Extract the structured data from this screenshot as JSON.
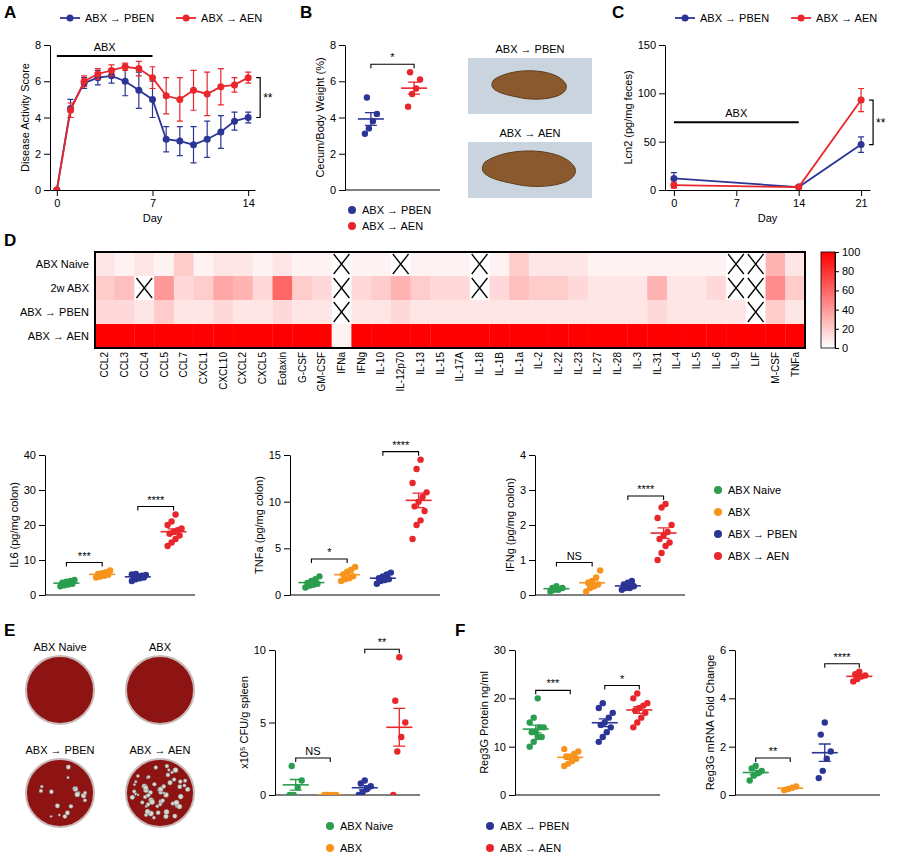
{
  "chart_data": [
    {
      "type": "line",
      "panel_label": "A",
      "x": [
        0,
        1,
        2,
        3,
        4,
        5,
        6,
        7,
        8,
        9,
        10,
        11,
        12,
        13,
        14
      ],
      "xlim": [
        -0.5,
        14.5
      ],
      "xticks": [
        0,
        7,
        14
      ],
      "xlabel": "Day",
      "ylabel": "Disease Activity Score",
      "ylim": [
        0,
        8
      ],
      "yticks": [
        0,
        2,
        4,
        6,
        8
      ],
      "legend": "top",
      "series": [
        {
          "name": "ABX → PBEN",
          "color": "#2b3595",
          "marker": "circle",
          "values": [
            0,
            4.5,
            5.9,
            6.2,
            6.3,
            6.0,
            5.5,
            5.0,
            2.8,
            2.7,
            2.5,
            2.8,
            3.2,
            3.8,
            4.0
          ],
          "errors": [
            0,
            0.5,
            0.3,
            0.4,
            0.4,
            0.8,
            1.0,
            1.0,
            0.7,
            0.8,
            1.0,
            1.0,
            0.9,
            0.5,
            0.3
          ]
        },
        {
          "name": "ABX → AEN",
          "color": "#e8262b",
          "marker": "circle",
          "values": [
            0,
            4.4,
            6.0,
            6.4,
            6.6,
            6.8,
            6.7,
            6.2,
            5.2,
            5.0,
            5.5,
            5.3,
            5.7,
            5.8,
            6.2
          ],
          "errors": [
            0,
            0.4,
            0.3,
            0.3,
            0.3,
            0.2,
            0.4,
            0.6,
            1.0,
            1.2,
            1.1,
            1.2,
            1.0,
            0.4,
            0.3
          ]
        }
      ],
      "annotations": [
        {
          "text": "ABX",
          "x": [
            0,
            7
          ],
          "y": 7.4
        }
      ],
      "significance": [
        {
          "text": "**"
        }
      ]
    },
    {
      "type": "strip",
      "panel_label": "B",
      "ylabel": "Cecum/Body Weight (%)",
      "ylim": [
        0,
        8
      ],
      "yticks": [
        0,
        2,
        4,
        6,
        8
      ],
      "legend": "bottom",
      "series": [
        {
          "name": "ABX → PBEN",
          "color": "#2b3595",
          "values": [
            3.1,
            3.4,
            3.8,
            4.2,
            5.1
          ],
          "mean": 3.92,
          "error": 0.35
        },
        {
          "name": "ABX → AEN",
          "color": "#e8262b",
          "values": [
            4.6,
            5.3,
            5.6,
            6.1,
            6.5
          ],
          "mean": 5.62,
          "error": 0.33
        }
      ],
      "significance": [
        {
          "text": "*",
          "groups": [
            0,
            1
          ]
        }
      ],
      "image_labels": [
        "ABX → PBEN",
        "ABX → AEN"
      ]
    },
    {
      "type": "line",
      "panel_label": "C",
      "x": [
        0,
        14,
        21
      ],
      "xlim": [
        -1,
        22
      ],
      "xticks": [
        0,
        7,
        14,
        21
      ],
      "xlabel": "Day",
      "ylabel": "Lcn2 (pg/mg feces)",
      "ylim": [
        0,
        150
      ],
      "yticks": [
        0,
        50,
        100,
        150
      ],
      "legend": "top",
      "series": [
        {
          "name": "ABX → PBEN",
          "color": "#2b3595",
          "marker": "circle",
          "values": [
            12,
            3,
            47
          ],
          "errors": [
            6,
            1,
            8
          ]
        },
        {
          "name": "ABX → AEN",
          "color": "#e8262b",
          "marker": "circle",
          "values": [
            5,
            3,
            93
          ],
          "errors": [
            3,
            1,
            12
          ]
        }
      ],
      "annotations": [
        {
          "text": "ABX",
          "x": [
            0,
            14
          ],
          "y": 70
        }
      ],
      "significance": [
        {
          "text": "**"
        }
      ]
    },
    {
      "type": "heatmap",
      "panel_label": "D",
      "color": "#ff0000",
      "rows": [
        "ABX Naive",
        "2w ABX",
        "ABX → PBEN",
        "ABX → AEN"
      ],
      "columns": [
        "CCL2",
        "CCL3",
        "CCL4",
        "CCL5",
        "CCL7",
        "CXCL1",
        "CXCL10",
        "CXCL2",
        "CXCL5",
        "Eotaxin",
        "G-CSF",
        "GM-CSF",
        "IFNa",
        "IFNg",
        "IL-10",
        "IL-12p70",
        "IL-13",
        "IL-15",
        "IL-17A",
        "IL-18",
        "IL-1B",
        "IL-1a",
        "IL-2",
        "IL-22",
        "IL-23",
        "IL-27",
        "IL-28",
        "IL-3",
        "IL-31",
        "IL-4",
        "IL-5",
        "IL-6",
        "IL-9",
        "LIF",
        "M-CSF",
        "TNFa"
      ],
      "cells": [
        [
          10,
          5,
          10,
          5,
          20,
          5,
          10,
          10,
          5,
          10,
          5,
          5,
          null,
          5,
          5,
          null,
          5,
          5,
          5,
          null,
          5,
          20,
          10,
          10,
          10,
          5,
          5,
          5,
          5,
          5,
          5,
          5,
          null,
          null,
          30,
          10
        ],
        [
          20,
          25,
          null,
          40,
          15,
          20,
          35,
          30,
          15,
          60,
          20,
          15,
          null,
          15,
          20,
          30,
          20,
          15,
          15,
          null,
          15,
          25,
          20,
          20,
          15,
          10,
          10,
          10,
          30,
          10,
          10,
          15,
          null,
          null,
          45,
          20
        ],
        [
          15,
          15,
          10,
          20,
          10,
          10,
          15,
          10,
          10,
          15,
          10,
          10,
          null,
          10,
          10,
          15,
          10,
          10,
          10,
          10,
          10,
          10,
          10,
          10,
          10,
          10,
          10,
          10,
          15,
          10,
          10,
          10,
          10,
          null,
          20,
          10
        ],
        [
          100,
          100,
          100,
          100,
          100,
          100,
          100,
          100,
          100,
          100,
          100,
          100,
          5,
          100,
          100,
          100,
          100,
          100,
          100,
          100,
          100,
          100,
          100,
          100,
          100,
          100,
          100,
          100,
          100,
          100,
          100,
          100,
          100,
          100,
          100,
          100
        ]
      ],
      "colorbar": {
        "range": [
          0,
          100
        ],
        "ticks": [
          0,
          20,
          40,
          60,
          80,
          100
        ]
      }
    },
    {
      "type": "strip",
      "ylabel": "IL6 (pg/mg colon)",
      "ylim": [
        0,
        40
      ],
      "yticks": [
        0,
        10,
        20,
        30,
        40
      ],
      "series": [
        {
          "color": "#2a9d4f",
          "values": [
            2.5,
            2.8,
            3,
            3.2,
            3.5,
            3.8,
            4,
            4.3
          ],
          "mean": 3.39,
          "error": 0.22
        },
        {
          "color": "#f7941d",
          "values": [
            5,
            5.3,
            5.5,
            5.8,
            6,
            6.2,
            6.5,
            7
          ],
          "mean": 5.91,
          "error": 0.23
        },
        {
          "color": "#2b3595",
          "values": [
            4,
            4.5,
            4.8,
            5,
            5.2,
            5.3,
            5.5,
            5.7,
            5.9,
            6
          ],
          "mean": 5.19,
          "error": 0.2
        },
        {
          "color": "#e8262b",
          "values": [
            14,
            15,
            16,
            17,
            17.5,
            18,
            18.5,
            19,
            20,
            21,
            23
          ],
          "mean": 18.09,
          "error": 0.78
        }
      ],
      "significance": [
        {
          "text": "***",
          "groups": [
            0,
            1
          ]
        },
        {
          "text": "****",
          "groups": [
            2,
            3
          ]
        }
      ]
    },
    {
      "type": "strip",
      "ylabel": "TNFa (pg/mg colon)",
      "ylim": [
        0,
        15
      ],
      "yticks": [
        0,
        5,
        10,
        15
      ],
      "series": [
        {
          "color": "#2a9d4f",
          "values": [
            0.8,
            1,
            1.1,
            1.2,
            1.3,
            1.5,
            1.7,
            2
          ],
          "mean": 1.33,
          "error": 0.14
        },
        {
          "color": "#f7941d",
          "values": [
            1.5,
            1.7,
            1.8,
            2,
            2.2,
            2.5,
            2.7,
            3
          ],
          "mean": 2.18,
          "error": 0.18
        },
        {
          "color": "#2b3595",
          "values": [
            1.2,
            1.5,
            1.6,
            1.7,
            1.8,
            2,
            2.2,
            2.4
          ],
          "mean": 1.8,
          "error": 0.14
        },
        {
          "color": "#e8262b",
          "values": [
            6,
            7.5,
            8,
            9,
            9.5,
            10,
            10.5,
            11,
            12,
            13.5,
            14.5
          ],
          "mean": 10.14,
          "error": 0.77
        }
      ],
      "significance": [
        {
          "text": "*",
          "groups": [
            0,
            1
          ]
        },
        {
          "text": "****",
          "groups": [
            2,
            3
          ]
        }
      ]
    },
    {
      "type": "strip",
      "ylabel": "IFNg (pg/mg colon)",
      "ylim": [
        0,
        4
      ],
      "yticks": [
        0,
        1,
        2,
        3,
        4
      ],
      "legend": "right",
      "series": [
        {
          "name": "ABX Naive",
          "color": "#2a9d4f",
          "values": [
            0.1,
            0.15,
            0.15,
            0.2,
            0.2,
            0.25
          ],
          "mean": 0.18,
          "error": 0.02
        },
        {
          "name": "ABX",
          "color": "#f7941d",
          "values": [
            0.1,
            0.2,
            0.25,
            0.3,
            0.35,
            0.4,
            0.5,
            0.7
          ],
          "mean": 0.35,
          "error": 0.07
        },
        {
          "name": "ABX → PBEN",
          "color": "#2b3595",
          "values": [
            0.15,
            0.2,
            0.2,
            0.25,
            0.3,
            0.35,
            0.4
          ],
          "mean": 0.26,
          "error": 0.03
        },
        {
          "name": "ABX → AEN",
          "color": "#e8262b",
          "values": [
            1,
            1.2,
            1.4,
            1.5,
            1.6,
            1.7,
            1.8,
            2,
            2.2,
            2.5,
            2.6
          ],
          "mean": 1.77,
          "error": 0.15
        }
      ],
      "significance": [
        {
          "text": "NS",
          "groups": [
            0,
            1
          ]
        },
        {
          "text": "****",
          "groups": [
            2,
            3
          ]
        }
      ]
    },
    {
      "type": "strip",
      "panel_label": "E",
      "ylabel": "x10⁵ CFU/g spleen",
      "ylim": [
        0,
        10
      ],
      "yticks": [
        0,
        5,
        10
      ],
      "image_labels": [
        "ABX Naive",
        "ABX",
        "ABX → PBEN",
        "ABX → AEN"
      ],
      "series": [
        {
          "color": "#2a9d4f",
          "values": [
            0,
            0,
            0.5,
            1,
            2
          ],
          "mean": 0.7,
          "error": 0.37
        },
        {
          "color": "#f7941d",
          "values": [
            0,
            0,
            0,
            0,
            0
          ],
          "mean": 0,
          "error": 0
        },
        {
          "color": "#2b3595",
          "values": [
            0,
            0.2,
            0.4,
            0.6,
            0.8,
            1
          ],
          "mean": 0.5,
          "error": 0.15
        },
        {
          "color": "#e8262b",
          "values": [
            0,
            3,
            4,
            5,
            6.5,
            9.5
          ],
          "mean": 4.67,
          "error": 1.3
        }
      ],
      "significance": [
        {
          "text": "NS",
          "groups": [
            0,
            1
          ]
        },
        {
          "text": "**",
          "groups": [
            2,
            3
          ]
        }
      ]
    },
    {
      "type": "strip",
      "panel_label": "F",
      "ylabel": "Reg3G Protein ng/ml",
      "ylim": [
        0,
        30
      ],
      "yticks": [
        0,
        10,
        20,
        30
      ],
      "series": [
        {
          "color": "#2a9d4f",
          "values": [
            10,
            11,
            12,
            12,
            13,
            13,
            14,
            14,
            15,
            16,
            20
          ],
          "mean": 13.64,
          "error": 0.8
        },
        {
          "color": "#f7941d",
          "values": [
            6,
            6.5,
            7,
            7.5,
            8,
            8,
            8.5,
            9,
            9.5
          ],
          "mean": 7.78,
          "error": 0.38
        },
        {
          "color": "#2b3595",
          "values": [
            11,
            12,
            13,
            14,
            14.5,
            15,
            16,
            17,
            18,
            19
          ],
          "mean": 14.95,
          "error": 0.8
        },
        {
          "color": "#e8262b",
          "values": [
            14,
            15,
            16,
            17,
            17.5,
            18,
            18.5,
            19,
            20,
            21
          ],
          "mean": 17.6,
          "error": 0.7
        }
      ],
      "significance": [
        {
          "text": "***",
          "groups": [
            0,
            1
          ]
        },
        {
          "text": "*",
          "groups": [
            2,
            3
          ]
        }
      ]
    },
    {
      "type": "strip",
      "ylabel": "Reg3G mRNA Fold Change",
      "ylim": [
        0,
        6
      ],
      "yticks": [
        0,
        2,
        4,
        6
      ],
      "legend": "bottom",
      "series": [
        {
          "name": "ABX Naive",
          "color": "#2a9d4f",
          "values": [
            0.6,
            0.8,
            0.9,
            1,
            1.1,
            1.2
          ],
          "mean": 0.93,
          "error": 0.09
        },
        {
          "name": "ABX",
          "color": "#f7941d",
          "values": [
            0.2,
            0.25,
            0.3,
            0.35
          ],
          "mean": 0.28,
          "error": 0.03
        },
        {
          "name": "ABX → PBEN",
          "color": "#2b3595",
          "values": [
            0.7,
            1,
            1.5,
            1.8,
            2.5,
            3
          ],
          "mean": 1.75,
          "error": 0.36
        },
        {
          "name": "ABX → AEN",
          "color": "#e8262b",
          "values": [
            4.7,
            4.8,
            4.9,
            4.95,
            5,
            5.1
          ],
          "mean": 4.91,
          "error": 0.06
        }
      ],
      "significance": [
        {
          "text": "**",
          "groups": [
            0,
            1
          ]
        },
        {
          "text": "****",
          "groups": [
            2,
            3
          ]
        }
      ]
    }
  ]
}
